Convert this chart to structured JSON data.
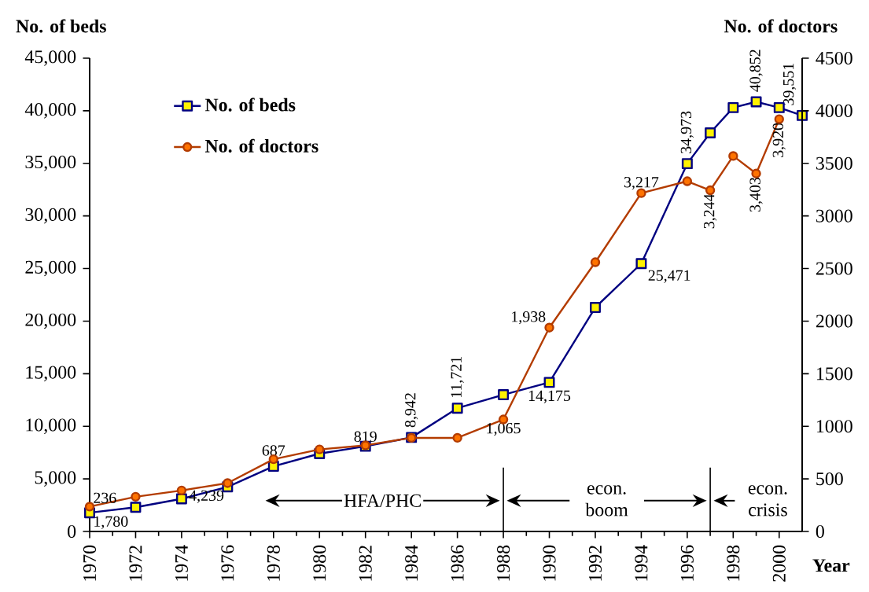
{
  "chart_data": {
    "type": "line",
    "x": [
      1970,
      1972,
      1974,
      1976,
      1978,
      1980,
      1982,
      1984,
      1986,
      1988,
      1990,
      1992,
      1994,
      1996,
      1997,
      1998,
      1999,
      2000,
      2001
    ],
    "series": [
      {
        "name": "No. of beds",
        "color": "#000080",
        "marker": "square",
        "values": [
          1780,
          2300,
          3100,
          4239,
          6200,
          7400,
          8100,
          8942,
          11721,
          13000,
          14175,
          21300,
          25471,
          34973,
          37900,
          40300,
          40852,
          40300,
          39551
        ],
        "value_labels": [
          "1,780",
          null,
          null,
          "4,239",
          null,
          null,
          null,
          "8,942",
          "11,721",
          null,
          "14,175",
          null,
          "25,471",
          "34,973",
          null,
          null,
          "40,852",
          null,
          "39,551"
        ]
      },
      {
        "name": "No. of doctors",
        "color": "#b33c00",
        "marker": "circle",
        "axis": "y2",
        "values": [
          236,
          330,
          390,
          460,
          687,
          780,
          819,
          890,
          890,
          1065,
          1938,
          2560,
          3217,
          3330,
          3244,
          3570,
          3403,
          3920,
          null
        ],
        "value_labels": [
          "236",
          null,
          null,
          null,
          "687",
          null,
          "819",
          null,
          null,
          "1,065",
          "1,938",
          null,
          "3,217",
          null,
          "3,244",
          null,
          "3,403",
          "3,920",
          null
        ]
      }
    ],
    "xlabel": "Year",
    "ylabel": "No. of beds",
    "y2label": "No. of doctors",
    "xlim": [
      1970,
      2001
    ],
    "xticks": [
      1970,
      1972,
      1974,
      1976,
      1978,
      1980,
      1982,
      1984,
      1986,
      1988,
      1990,
      1992,
      1994,
      1996,
      1998,
      2000
    ],
    "ylim": [
      0,
      45000
    ],
    "yticks": [
      0,
      {
        "value": 5000,
        "label": "5,000"
      },
      {
        "value": 10000,
        "label": "10,000"
      },
      {
        "value": 15000,
        "label": "15,000"
      },
      {
        "value": 20000,
        "label": "20,000"
      },
      {
        "value": 25000,
        "label": "25,000"
      },
      {
        "value": 30000,
        "label": "30,000"
      },
      {
        "value": 35000,
        "label": "35,000"
      },
      {
        "value": 40000,
        "label": "40,000"
      },
      {
        "value": 45000,
        "label": "45,000"
      }
    ],
    "y2lim": [
      0,
      4500
    ],
    "y2ticks": [
      0,
      500,
      1000,
      1500,
      2000,
      2500,
      3000,
      3500,
      4000,
      4500
    ],
    "ref_lines": [
      {
        "axis": "x",
        "value": 1988,
        "color": "#000000"
      },
      {
        "axis": "x",
        "value": 1997,
        "color": "#000000"
      }
    ],
    "annotations": [
      "HFA/PHC",
      "econ. boom",
      "econ. crisis"
    ],
    "legend": "top left"
  }
}
